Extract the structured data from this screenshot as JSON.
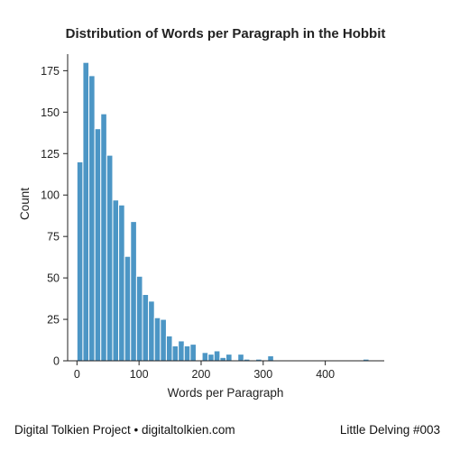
{
  "chart_data": {
    "type": "bar",
    "title": "Distribution of Words per Paragraph in the Hobbit",
    "xlabel": "Words per Paragraph",
    "ylabel": "Count",
    "xlim": [
      -15,
      495
    ],
    "ylim": [
      0,
      185
    ],
    "xticks": [
      0,
      100,
      200,
      300,
      400
    ],
    "yticks": [
      0,
      25,
      50,
      75,
      100,
      125,
      150,
      175
    ],
    "bin_width": 9.6,
    "bins": [
      {
        "x0": 0.0,
        "x1": 9.6,
        "count": 120
      },
      {
        "x0": 9.6,
        "x1": 19.2,
        "count": 180
      },
      {
        "x0": 19.2,
        "x1": 28.8,
        "count": 172
      },
      {
        "x0": 28.8,
        "x1": 38.4,
        "count": 140
      },
      {
        "x0": 38.4,
        "x1": 48.0,
        "count": 149
      },
      {
        "x0": 48.0,
        "x1": 57.6,
        "count": 124
      },
      {
        "x0": 57.6,
        "x1": 67.2,
        "count": 97
      },
      {
        "x0": 67.2,
        "x1": 76.8,
        "count": 94
      },
      {
        "x0": 76.8,
        "x1": 86.4,
        "count": 63
      },
      {
        "x0": 86.4,
        "x1": 96.0,
        "count": 84
      },
      {
        "x0": 96.0,
        "x1": 105.6,
        "count": 51
      },
      {
        "x0": 105.6,
        "x1": 115.2,
        "count": 40
      },
      {
        "x0": 115.2,
        "x1": 124.8,
        "count": 36
      },
      {
        "x0": 124.8,
        "x1": 134.4,
        "count": 26
      },
      {
        "x0": 134.4,
        "x1": 144.0,
        "count": 25
      },
      {
        "x0": 144.0,
        "x1": 153.6,
        "count": 15
      },
      {
        "x0": 153.6,
        "x1": 163.2,
        "count": 9
      },
      {
        "x0": 163.2,
        "x1": 172.8,
        "count": 12
      },
      {
        "x0": 172.8,
        "x1": 182.4,
        "count": 9
      },
      {
        "x0": 182.4,
        "x1": 192.0,
        "count": 10
      },
      {
        "x0": 192.0,
        "x1": 201.6,
        "count": 0
      },
      {
        "x0": 201.6,
        "x1": 211.2,
        "count": 5
      },
      {
        "x0": 211.2,
        "x1": 220.8,
        "count": 4
      },
      {
        "x0": 220.8,
        "x1": 230.4,
        "count": 6
      },
      {
        "x0": 230.4,
        "x1": 240.0,
        "count": 2
      },
      {
        "x0": 240.0,
        "x1": 249.6,
        "count": 4
      },
      {
        "x0": 249.6,
        "x1": 259.2,
        "count": 0
      },
      {
        "x0": 259.2,
        "x1": 268.8,
        "count": 4
      },
      {
        "x0": 268.8,
        "x1": 278.4,
        "count": 1
      },
      {
        "x0": 278.4,
        "x1": 288.0,
        "count": 0
      },
      {
        "x0": 288.0,
        "x1": 297.6,
        "count": 1
      },
      {
        "x0": 297.6,
        "x1": 307.2,
        "count": 0
      },
      {
        "x0": 307.2,
        "x1": 316.8,
        "count": 3
      },
      {
        "x0": 460.8,
        "x1": 470.4,
        "count": 1
      }
    ],
    "bar_color": "#4c96c5",
    "grid": false
  },
  "footer": {
    "left": "Digital Tolkien Project • digitaltolkien.com",
    "right": "Little Delving #003"
  }
}
